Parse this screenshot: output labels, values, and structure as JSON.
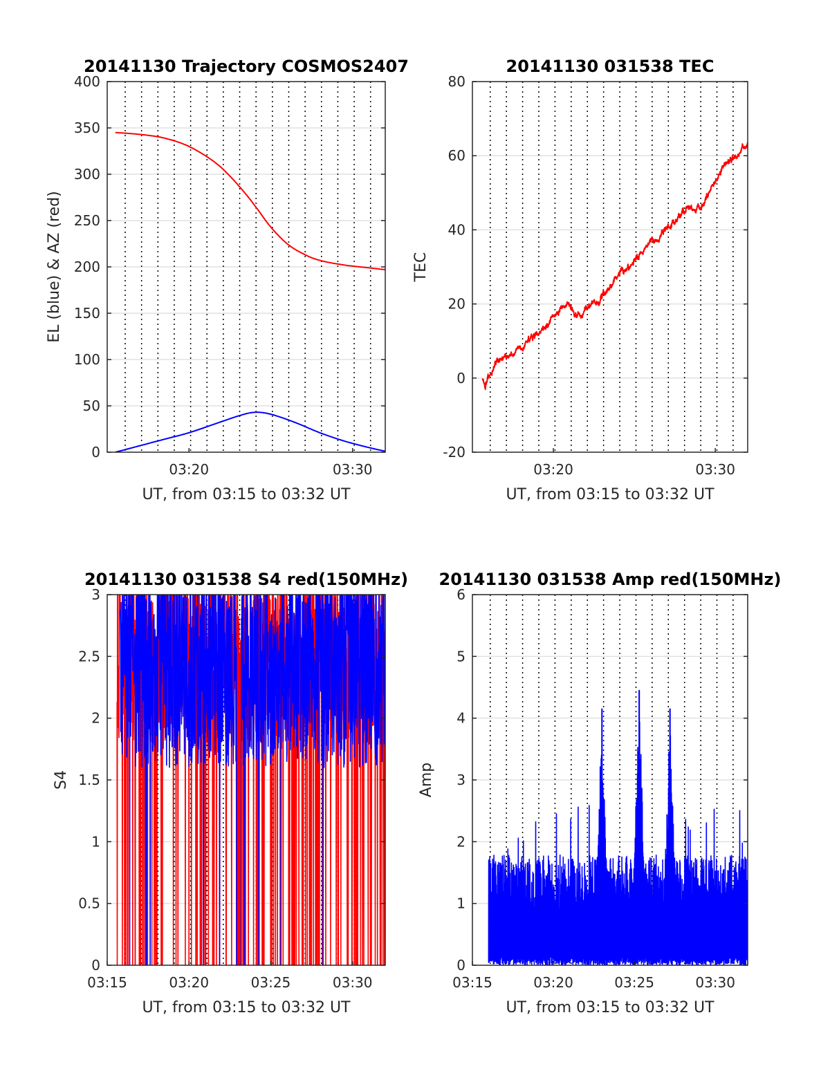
{
  "figure": {
    "panels_note": "four panels sharing a UT time axis"
  },
  "chart_data": [
    {
      "id": "traj",
      "type": "line",
      "title": "20141130 Trajectory COSMOS2407",
      "xlabel": "UT, from 03:15 to 03:32 UT",
      "ylabel": "EL (blue) & AZ (red)",
      "x_range_min": [
        915,
        952
      ],
      "ylim": [
        0,
        400
      ],
      "yticks": [
        0,
        50,
        100,
        150,
        200,
        250,
        300,
        350,
        400
      ],
      "xticks": [
        {
          "min": 920,
          "label": "03:20"
        },
        {
          "min": 930,
          "label": "03:30"
        }
      ],
      "grid": "horizontal solid, vertical dotted",
      "series": [
        {
          "color": "#ff0000",
          "kind": "smooth",
          "x": [
            915.5,
            917,
            918.5,
            920,
            921.5,
            922.5,
            923.5,
            924.2,
            925,
            926,
            927,
            928,
            929.5,
            931,
            932
          ],
          "values": [
            345,
            343,
            339,
            330,
            314,
            298,
            278,
            262,
            243,
            225,
            214,
            207,
            202,
            199,
            197
          ]
        },
        {
          "color": "#0000ff",
          "kind": "smooth",
          "x": [
            915.5,
            917,
            918.5,
            920,
            921.5,
            923,
            924,
            925,
            926.5,
            928,
            929.5,
            931,
            932
          ],
          "values": [
            0,
            7,
            14,
            21,
            30,
            39,
            43,
            41,
            32,
            21,
            12,
            5,
            1
          ]
        }
      ]
    },
    {
      "id": "tec",
      "type": "line",
      "title": "20141130 031538 TEC",
      "xlabel": "UT, from 03:15 to 03:32 UT",
      "ylabel": "TEC",
      "ylim": [
        -20,
        80
      ],
      "yticks": [
        -20,
        0,
        20,
        40,
        60,
        80
      ],
      "xticks": [
        {
          "min": 920,
          "label": "03:20"
        },
        {
          "min": 930,
          "label": "03:30"
        }
      ],
      "grid": "horizontal solid, vertical dotted",
      "series": [
        {
          "color": "#ff0000",
          "kind": "noisy",
          "noise": 0.9,
          "x": [
            915.6,
            915.8,
            916.3,
            917,
            918,
            919,
            919.8,
            920.5,
            920.9,
            921.3,
            922,
            922.8,
            923.5,
            924.5,
            925.5,
            926.5,
            927.5,
            928.3,
            928.8,
            929.2,
            929.8,
            930.5,
            931,
            931.5,
            932
          ],
          "values": [
            0,
            -2,
            3,
            6,
            8,
            12,
            15,
            19,
            21,
            17,
            18,
            21,
            25,
            29,
            34,
            38,
            42,
            46,
            45,
            47,
            52,
            57,
            59,
            61,
            63
          ]
        }
      ]
    },
    {
      "id": "s4",
      "type": "line",
      "title": "20141130 031538 S4 red(150MHz)",
      "xlabel": "UT, from 03:15 to 03:32 UT",
      "ylabel": "S4",
      "ylim": [
        0,
        3
      ],
      "yticks": [
        0,
        0.5,
        1,
        1.5,
        2,
        2.5,
        3
      ],
      "yticklabels": [
        "0",
        "0.5",
        "1",
        "1.5",
        "2",
        "2.5",
        "3"
      ],
      "xticks": [
        {
          "min": 915,
          "label": "03:15"
        },
        {
          "min": 920,
          "label": "03:20"
        },
        {
          "min": 925,
          "label": "03:25"
        },
        {
          "min": 930,
          "label": "03:30"
        }
      ],
      "grid": "horizontal solid, vertical dotted",
      "series": [
        {
          "color": "#ff0000",
          "kind": "spiky",
          "seed": 11,
          "base": 2.4,
          "spread": 0.6,
          "drop_prob": 0.12,
          "x_start": 915.6,
          "x_end": 932
        },
        {
          "color": "#0000ff",
          "kind": "spiky",
          "seed": 29,
          "base": 2.3,
          "spread": 0.7,
          "drop_prob": 0.01,
          "x_start": 915.8,
          "x_end": 932
        }
      ]
    },
    {
      "id": "amp",
      "type": "line",
      "title": "20141130 031538 Amp red(150MHz)",
      "xlabel": "UT, from 03:15 to 03:32 UT",
      "ylabel": "Amp",
      "ylim": [
        0,
        6
      ],
      "yticks": [
        0,
        1,
        2,
        3,
        4,
        5,
        6
      ],
      "xticks": [
        {
          "min": 915,
          "label": "03:15"
        },
        {
          "min": 920,
          "label": "03:20"
        },
        {
          "min": 925,
          "label": "03:25"
        },
        {
          "min": 930,
          "label": "03:30"
        }
      ],
      "grid": "horizontal solid, vertical dotted",
      "peaks": [
        {
          "x": 923.0,
          "value": 4.15
        },
        {
          "x": 925.3,
          "value": 4.45
        },
        {
          "x": 927.2,
          "value": 4.15
        }
      ],
      "series": [
        {
          "color": "#0000ff",
          "kind": "amp",
          "seed": 7,
          "base": 1.7,
          "x_start": 916.0,
          "x_end": 932
        }
      ]
    }
  ],
  "vertical_dotted_grid_minutes": [
    916.1,
    917.1,
    918.1,
    919.1,
    920.1,
    921.1,
    922.1,
    923.1,
    924.1,
    925.1,
    926.1,
    927.1,
    928.1,
    929.1,
    930.1,
    931.1
  ]
}
